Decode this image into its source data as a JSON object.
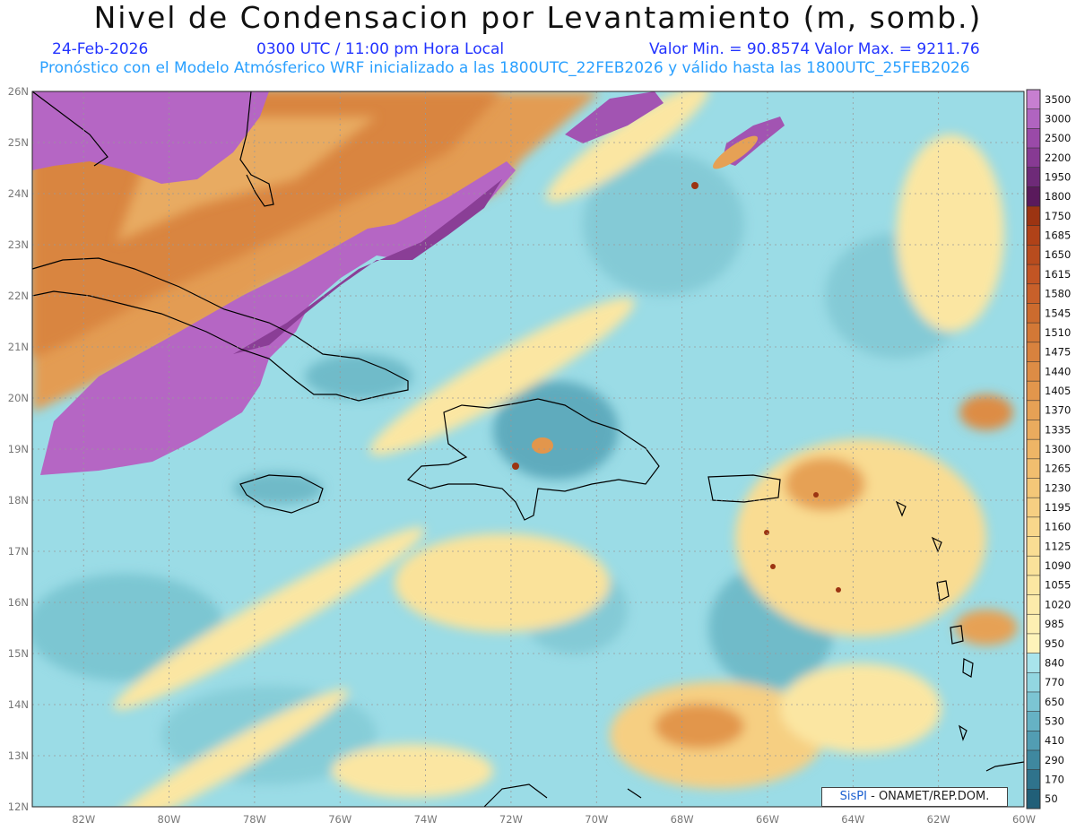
{
  "header": {
    "title": "Nivel de Condensacion por Levantamiento (m, somb.)",
    "date": "24-Feb-2026",
    "time": "0300 UTC / 11:00 pm Hora Local",
    "min_max": "Valor Min. = 90.8574  Valor Max. = 9211.76",
    "model_info": "Pronóstico con el Modelo Atmósferico WRF inicializado a las 1800UTC_22FEB2026 y válido hasta las  1800UTC_25FEB2026"
  },
  "map": {
    "lat_labels": [
      "26N",
      "25N",
      "24N",
      "23N",
      "22N",
      "21N",
      "20N",
      "19N",
      "18N",
      "17N",
      "16N",
      "15N",
      "14N",
      "13N",
      "12N"
    ],
    "lon_labels": [
      "82W",
      "80W",
      "78W",
      "76W",
      "74W",
      "72W",
      "70W",
      "68W",
      "66W",
      "64W",
      "62W",
      "60W"
    ],
    "extent": {
      "lon_min": -83.2,
      "lon_max": -60,
      "lat_min": 12,
      "lat_max": 26
    }
  },
  "colorbar": {
    "levels": [
      "3500",
      "3000",
      "2500",
      "2200",
      "1950",
      "1800",
      "1750",
      "1685",
      "1650",
      "1615",
      "1580",
      "1545",
      "1510",
      "1475",
      "1440",
      "1405",
      "1370",
      "1335",
      "1300",
      "1265",
      "1230",
      "1195",
      "1160",
      "1125",
      "1090",
      "1055",
      "1020",
      "985",
      "950",
      "840",
      "770",
      "650",
      "530",
      "410",
      "290",
      "170",
      "50"
    ],
    "colors": [
      "#c77fd0",
      "#b064c0",
      "#9a4aa8",
      "#873a93",
      "#6e2a78",
      "#5a1a5c",
      "#9c3412",
      "#b04218",
      "#b84c1e",
      "#c25524",
      "#c8602a",
      "#cc6b2e",
      "#d37836",
      "#d8823e",
      "#dd8c45",
      "#e2964c",
      "#e6a155",
      "#eaab5e",
      "#eeb566",
      "#f1be6f",
      "#f4c778",
      "#f6cf82",
      "#f8d78b",
      "#f9dd93",
      "#fae29a",
      "#fbe7a2",
      "#fcebaa",
      "#fdefb2",
      "#fef3ba",
      "#a9e4ec",
      "#92d6e1",
      "#7cc5d3",
      "#66b2c4",
      "#529db3",
      "#3f889f",
      "#2f738c",
      "#215f78"
    ]
  },
  "credit": {
    "brand": "SisPI",
    "text": " - ONAMET/REP.DOM."
  }
}
